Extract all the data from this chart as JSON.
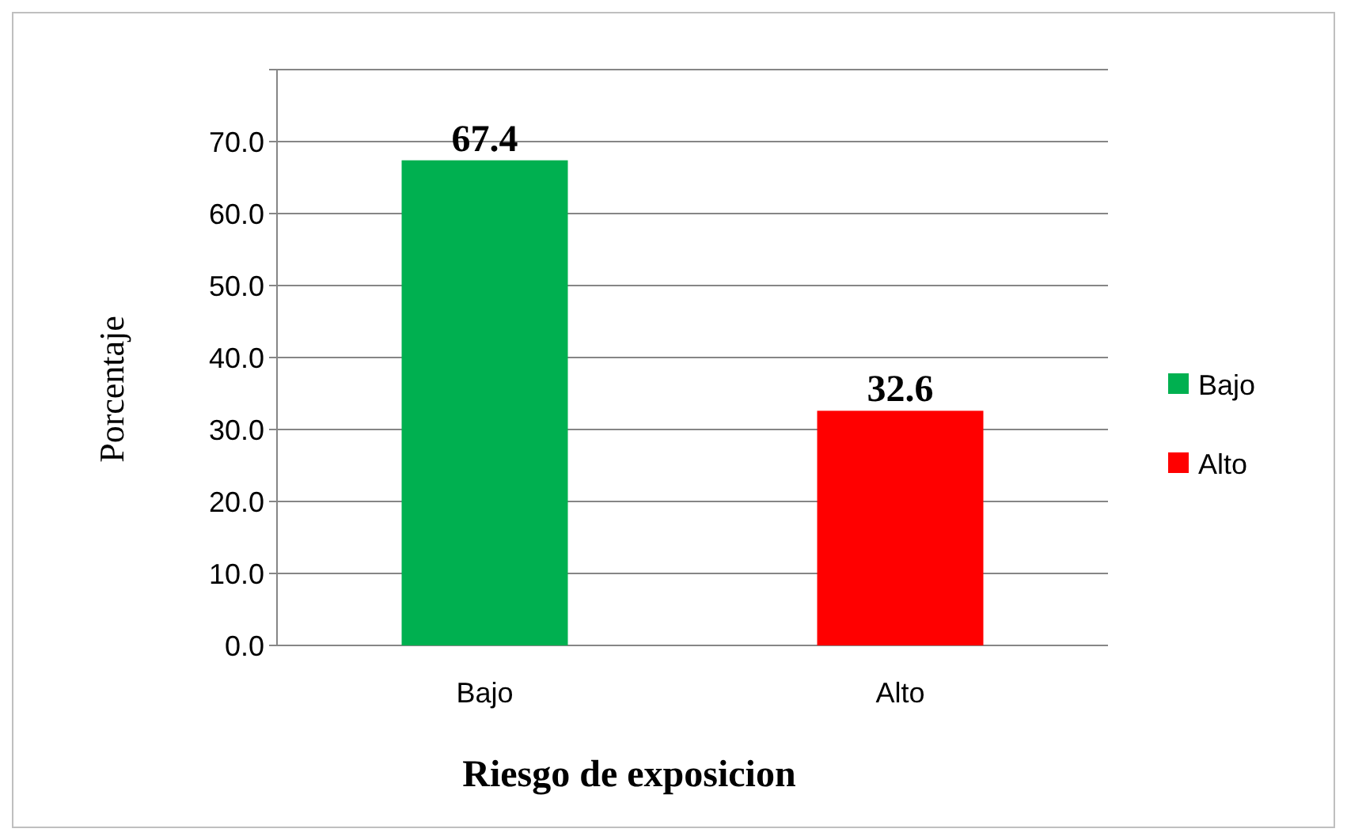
{
  "chart_data": {
    "type": "bar",
    "xlabel": "Riesgo de exposicion",
    "ylabel": "Porcentaje",
    "categories": [
      "Bajo",
      "Alto"
    ],
    "series": [
      {
        "name": "Bajo",
        "color": "#00b050",
        "values": [
          67.4,
          null
        ]
      },
      {
        "name": "Alto",
        "color": "#ff0000",
        "values": [
          null,
          32.6
        ]
      }
    ],
    "ylim": [
      0,
      80
    ],
    "yticks": [
      {
        "value": 0,
        "label": "0.0"
      },
      {
        "value": 10,
        "label": "10.0"
      },
      {
        "value": 20,
        "label": "20.0"
      },
      {
        "value": 30,
        "label": "30.0"
      },
      {
        "value": 40,
        "label": "40.0"
      },
      {
        "value": 50,
        "label": "50.0"
      },
      {
        "value": 60,
        "label": "60.0"
      },
      {
        "value": 70,
        "label": "70.0"
      },
      {
        "value": 80,
        "label": null
      }
    ],
    "grid": "y",
    "legend": "right",
    "data_labels": true
  }
}
